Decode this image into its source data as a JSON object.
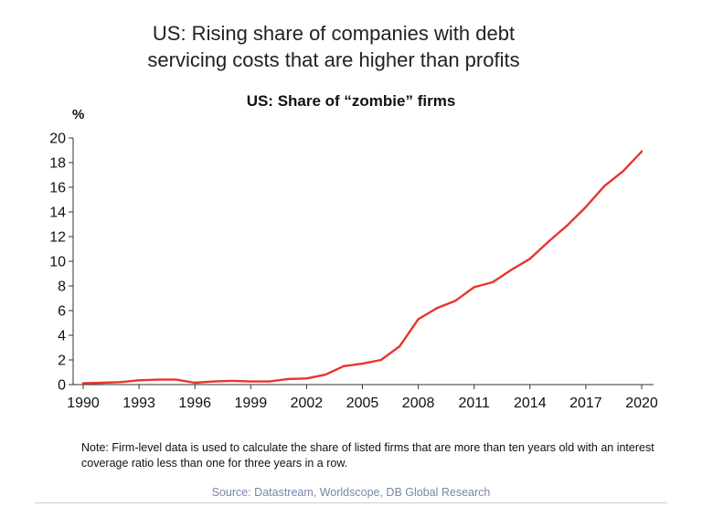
{
  "headline": {
    "line1": "US: Rising share of companies with debt",
    "line2": "servicing costs that are higher than profits"
  },
  "note": "Note: Firm-level data is used to calculate the share of listed firms that are more than ten years old with an interest coverage ratio less than one for three years in a row.",
  "source": "Source: Datastream, Worldscope, DB Global Research",
  "colors": {
    "line": "#e8352b",
    "axis": "#333333"
  },
  "chart_data": {
    "type": "line",
    "title": "US: Share of “zombie” firms",
    "ylabel": "%",
    "xlabel": "",
    "xlim": [
      1990,
      2020
    ],
    "ylim": [
      0,
      20
    ],
    "grid": false,
    "xticks": [
      1990,
      1993,
      1996,
      1999,
      2002,
      2005,
      2008,
      2011,
      2014,
      2017,
      2020
    ],
    "yticks": [
      0,
      2,
      4,
      6,
      8,
      10,
      12,
      14,
      16,
      18,
      20
    ],
    "series": [
      {
        "x": [
          1990,
          1991,
          1992,
          1993,
          1994,
          1995,
          1996,
          1997,
          1998,
          1999,
          2000,
          2001,
          2002,
          2003,
          2004,
          2005,
          2006,
          2007,
          2008,
          2009,
          2010,
          2011,
          2012,
          2013,
          2014,
          2015,
          2016,
          2017,
          2018,
          2019,
          2020
        ],
        "y": [
          0.1,
          0.15,
          0.2,
          0.35,
          0.4,
          0.4,
          0.15,
          0.25,
          0.3,
          0.25,
          0.25,
          0.45,
          0.5,
          0.8,
          1.5,
          1.7,
          2.0,
          3.1,
          5.3,
          6.2,
          6.8,
          7.9,
          8.3,
          9.3,
          10.2,
          11.6,
          12.9,
          14.4,
          16.1,
          17.3,
          18.9
        ]
      }
    ]
  }
}
